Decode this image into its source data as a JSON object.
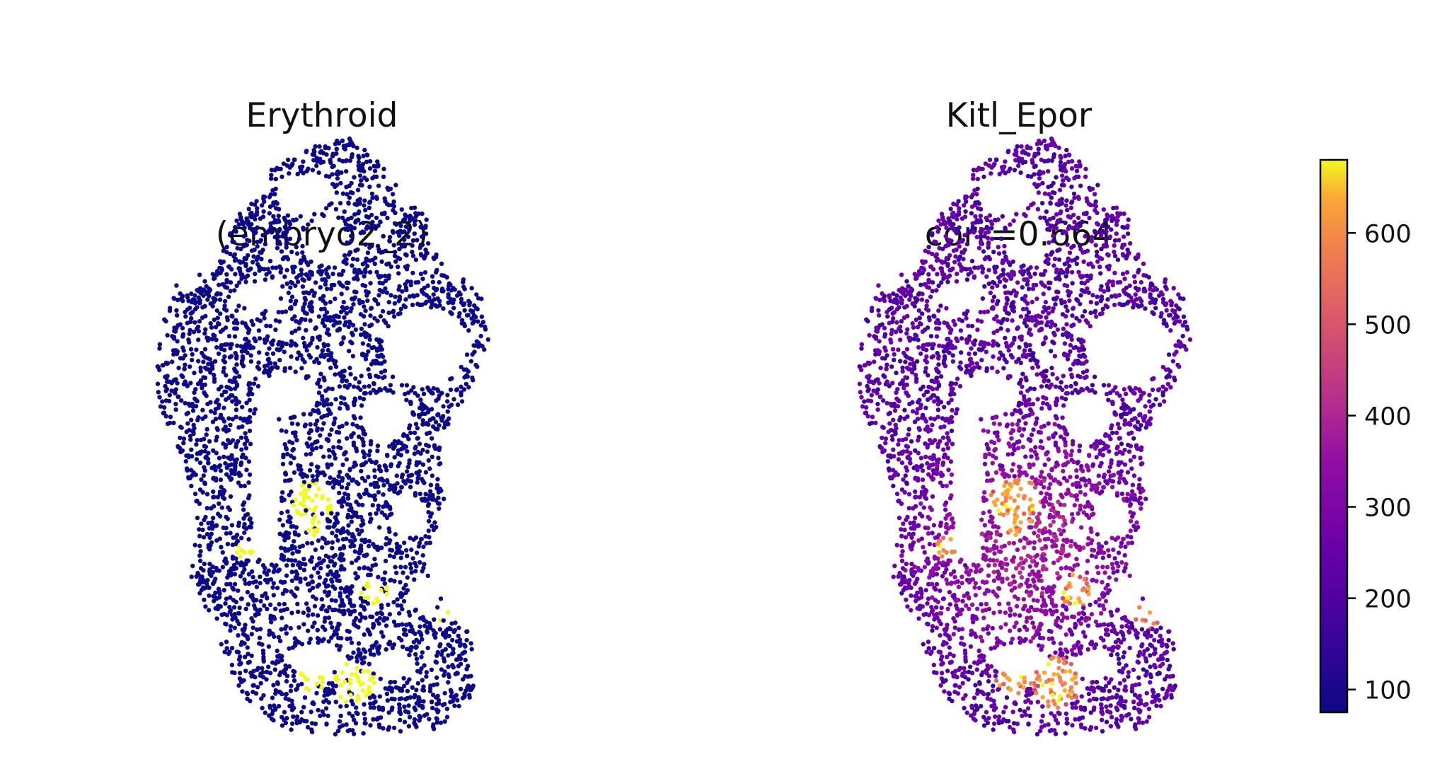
{
  "panels": [
    {
      "title_line1": "Erythroid",
      "title_line2": "(embryo2_2)",
      "colormap": "binary",
      "background_color": "#0d0887",
      "highlight_color": "#f0f921"
    },
    {
      "title_line1": "Kitl_Epor",
      "title_line2": "corr=0.664",
      "colormap": "plasma"
    }
  ],
  "colorbar": {
    "min": 75,
    "max": 680,
    "ticks": [
      100,
      200,
      300,
      400,
      500,
      600
    ],
    "tick_labels": [
      "100",
      "200",
      "300",
      "400",
      "500",
      "600"
    ],
    "colormap": "plasma"
  },
  "chart_data": {
    "type": "scatter",
    "description_series": [
      {
        "name": "Erythroid (embryo2_2)",
        "value_kind": "binary"
      },
      {
        "name": "Kitl_Epor",
        "value_kind": "continuous",
        "range": [
          75,
          680
        ]
      }
    ],
    "correlation": 0.664,
    "axes_visible": false
  }
}
